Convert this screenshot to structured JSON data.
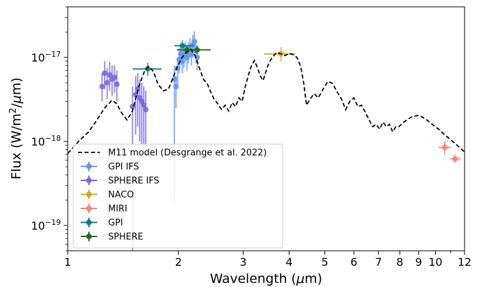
{
  "chart_data": {
    "type": "scatter",
    "xlabel": "Wavelength (μm)",
    "ylabel": "Flux (W/m²/μm)",
    "x_scale": "log",
    "y_scale": "log",
    "xlim": [
      1,
      12
    ],
    "ylim": [
      5e-20,
      4e-17
    ],
    "x_ticks": [
      {
        "value": 1,
        "label": "1"
      },
      {
        "value": 2,
        "label": "2"
      },
      {
        "value": 3,
        "label": "3"
      },
      {
        "value": 4,
        "label": "4"
      },
      {
        "value": 5,
        "label": "5"
      },
      {
        "value": 6,
        "label": "6"
      },
      {
        "value": 7,
        "label": "7"
      },
      {
        "value": 8,
        "label": "8"
      },
      {
        "value": 9,
        "label": "9"
      },
      {
        "value": 10,
        "label": "10"
      },
      {
        "value": 12,
        "label": "12"
      }
    ],
    "y_ticks": [
      {
        "value": 1e-19,
        "base": "10",
        "exp": "−19"
      },
      {
        "value": 1e-18,
        "base": "10",
        "exp": "−18"
      },
      {
        "value": 1e-17,
        "base": "10",
        "exp": "−17"
      }
    ],
    "grid": false,
    "legend_position": "lower-left",
    "model": {
      "name": "M11 model (Desgrange et al. 2022)",
      "color": "#000000",
      "style": "dashed",
      "x": [
        1.0,
        1.07,
        1.14,
        1.2,
        1.26,
        1.32,
        1.36,
        1.4,
        1.45,
        1.5,
        1.56,
        1.62,
        1.66,
        1.71,
        1.76,
        1.82,
        1.88,
        1.94,
        1.98,
        2.04,
        2.1,
        2.16,
        2.22,
        2.28,
        2.34,
        2.4,
        2.44,
        2.5,
        2.56,
        2.62,
        2.68,
        2.74,
        2.8,
        2.86,
        2.92,
        2.98,
        3.04,
        3.1,
        3.16,
        3.22,
        3.28,
        3.34,
        3.4,
        3.46,
        3.52,
        3.6,
        3.7,
        3.8,
        3.9,
        4.0,
        4.1,
        4.2,
        4.3,
        4.38,
        4.46,
        4.56,
        4.68,
        4.8,
        4.95,
        5.1,
        5.25,
        5.4,
        5.55,
        5.7,
        5.85,
        6.0,
        6.15,
        6.3,
        6.45,
        6.6,
        6.75,
        6.9,
        7.05,
        7.2,
        7.35,
        7.5,
        7.65,
        7.8,
        7.95,
        8.2,
        8.6,
        9.0,
        9.4,
        9.8,
        10.2,
        10.6,
        11.0,
        11.4,
        11.8,
        12.0
      ],
      "y": [
        7.2e-19,
        1e-18,
        1.3e-18,
        1.8e-18,
        2.5e-18,
        3.1e-18,
        2.8e-18,
        2.2e-18,
        1.8e-18,
        2.3e-18,
        4.5e-18,
        7e-18,
        7.8e-18,
        6.8e-18,
        4.8e-18,
        4e-18,
        4.2e-18,
        6e-18,
        7.5e-18,
        9.8e-18,
        1.15e-17,
        1.25e-17,
        1.05e-17,
        7.5e-18,
        5.5e-18,
        4.8e-18,
        4e-18,
        3.2e-18,
        2.8e-18,
        2.4e-18,
        2.7e-18,
        2.3e-18,
        2.9e-18,
        2.6e-18,
        3.3e-18,
        3e-18,
        4.5e-18,
        6.2e-18,
        8e-18,
        9.2e-18,
        7.5e-18,
        6e-18,
        5.3e-18,
        6.8e-18,
        8.5e-18,
        1e-17,
        1.15e-17,
        1.1e-17,
        1.05e-17,
        1.12e-17,
        1.08e-17,
        1e-17,
        7.8e-18,
        5e-18,
        2.7e-18,
        3.2e-18,
        3.7e-18,
        3.3e-18,
        4.2e-18,
        5.2e-18,
        4.9e-18,
        3.9e-18,
        3.2e-18,
        2.4e-18,
        3e-18,
        3.3e-18,
        2.6e-18,
        2.7e-18,
        2.2e-18,
        1.8e-18,
        1.5e-18,
        1.6e-18,
        1.4e-18,
        1.7e-18,
        1.5e-18,
        1.6e-18,
        1.3e-18,
        1.5e-18,
        1.5e-18,
        1.7e-18,
        1.95e-18,
        2.05e-18,
        1.85e-18,
        1.6e-18,
        1.4e-18,
        1.2e-18,
        1.05e-18,
        9.2e-19,
        8e-19,
        7.5e-19
      ]
    },
    "series": [
      {
        "name": "GPI IFS",
        "color": "#6495ED",
        "points": [
          {
            "x": 1.95,
            "y": 5.5e-18,
            "ylo": 1.8e-19,
            "yhi": 8e-18
          },
          {
            "x": 1.97,
            "y": 4.5e-18,
            "ylo": 2.5e-18,
            "yhi": 6e-18
          },
          {
            "x": 1.99,
            "y": 7.5e-18,
            "ylo": 4.5e-18,
            "yhi": 1e-17
          },
          {
            "x": 2.01,
            "y": 9.5e-18,
            "ylo": 6.5e-18,
            "yhi": 1.3e-17
          },
          {
            "x": 2.03,
            "y": 1.1e-17,
            "ylo": 8e-18,
            "yhi": 1.45e-17
          },
          {
            "x": 2.05,
            "y": 9e-18,
            "ylo": 6.5e-18,
            "yhi": 1.2e-17
          },
          {
            "x": 2.07,
            "y": 1.05e-17,
            "ylo": 7.5e-18,
            "yhi": 1.4e-17
          },
          {
            "x": 2.09,
            "y": 1.2e-17,
            "ylo": 9e-18,
            "yhi": 1.55e-17
          },
          {
            "x": 2.11,
            "y": 1e-17,
            "ylo": 7e-18,
            "yhi": 1.35e-17
          },
          {
            "x": 2.13,
            "y": 1.15e-17,
            "ylo": 8.5e-18,
            "yhi": 1.5e-17
          },
          {
            "x": 2.15,
            "y": 1.3e-17,
            "ylo": 1e-17,
            "yhi": 1.7e-17
          },
          {
            "x": 2.17,
            "y": 1.1e-17,
            "ylo": 8e-18,
            "yhi": 1.5e-17
          },
          {
            "x": 2.19,
            "y": 1.4e-17,
            "ylo": 1e-17,
            "yhi": 1.85e-17
          },
          {
            "x": 2.21,
            "y": 1.55e-17,
            "ylo": 1.15e-17,
            "yhi": 2.05e-17
          },
          {
            "x": 2.23,
            "y": 1.2e-17,
            "ylo": 8.5e-18,
            "yhi": 1.6e-17
          },
          {
            "x": 2.25,
            "y": 1e-17,
            "ylo": 7e-18,
            "yhi": 1.4e-17
          }
        ]
      },
      {
        "name": "SPHERE IFS",
        "color": "#7B68D9",
        "points": [
          {
            "x": 1.24,
            "y": 4.5e-18,
            "ylo": 3e-18,
            "yhi": 6.5e-18
          },
          {
            "x": 1.26,
            "y": 6.5e-18,
            "ylo": 4.2e-18,
            "yhi": 9e-18
          },
          {
            "x": 1.28,
            "y": 5e-18,
            "ylo": 3.2e-18,
            "yhi": 7.5e-18
          },
          {
            "x": 1.3,
            "y": 6.2e-18,
            "ylo": 4e-18,
            "yhi": 8.8e-18
          },
          {
            "x": 1.32,
            "y": 5.5e-18,
            "ylo": 3.5e-18,
            "yhi": 8e-18
          },
          {
            "x": 1.34,
            "y": 5.8e-18,
            "ylo": 3.8e-18,
            "yhi": 8e-18
          },
          {
            "x": 1.36,
            "y": 4.8e-18,
            "ylo": 3e-18,
            "yhi": 7e-18
          },
          {
            "x": 1.5,
            "y": 2.6e-18,
            "ylo": 5e-20,
            "yhi": 4.5e-18
          },
          {
            "x": 1.53,
            "y": 3.6e-18,
            "ylo": 1.2e-18,
            "yhi": 6e-18
          },
          {
            "x": 1.55,
            "y": 4.2e-18,
            "ylo": 1.5e-18,
            "yhi": 6.5e-18
          },
          {
            "x": 1.57,
            "y": 3.3e-18,
            "ylo": 1e-18,
            "yhi": 5.5e-18
          },
          {
            "x": 1.59,
            "y": 3e-18,
            "ylo": 8e-19,
            "yhi": 5e-18
          },
          {
            "x": 1.61,
            "y": 2.7e-18,
            "ylo": 7e-19,
            "yhi": 4.5e-18
          },
          {
            "x": 1.63,
            "y": 2.4e-18,
            "ylo": 6e-19,
            "yhi": 4e-18
          }
        ]
      },
      {
        "name": "NACO",
        "color": "#DAA520",
        "points": [
          {
            "x": 3.8,
            "y": 1.1e-17,
            "ylo": 9e-18,
            "yhi": 1.32e-17,
            "xlo": 3.42,
            "xhi": 4.15
          }
        ]
      },
      {
        "name": "MIRI",
        "color": "#FA8072",
        "points": [
          {
            "x": 10.6,
            "y": 8.5e-19,
            "ylo": 7e-19,
            "yhi": 1e-18,
            "xlo": 10.2,
            "xhi": 11.0
          },
          {
            "x": 11.3,
            "y": 6.2e-19,
            "ylo": 5.5e-19,
            "yhi": 7e-19,
            "xlo": 10.95,
            "xhi": 11.7
          }
        ]
      },
      {
        "name": "GPI",
        "color": "#008080",
        "points": [
          {
            "x": 1.65,
            "y": 7.3e-18,
            "ylo": 6e-18,
            "yhi": 8.6e-18,
            "xlo": 1.5,
            "xhi": 1.8
          },
          {
            "x": 2.05,
            "y": 1.38e-17,
            "ylo": 1.2e-17,
            "yhi": 1.6e-17,
            "xlo": 1.95,
            "xhi": 2.2
          }
        ]
      },
      {
        "name": "SPHERE",
        "color": "#1E6B1E",
        "points": [
          {
            "x": 2.11,
            "y": 1.23e-17,
            "ylo": 1.1e-17,
            "yhi": 1.37e-17,
            "xlo": 1.98,
            "xhi": 2.26
          },
          {
            "x": 2.25,
            "y": 1.23e-17,
            "ylo": 1.1e-17,
            "yhi": 1.37e-17,
            "xlo": 2.1,
            "xhi": 2.45
          }
        ]
      }
    ]
  }
}
